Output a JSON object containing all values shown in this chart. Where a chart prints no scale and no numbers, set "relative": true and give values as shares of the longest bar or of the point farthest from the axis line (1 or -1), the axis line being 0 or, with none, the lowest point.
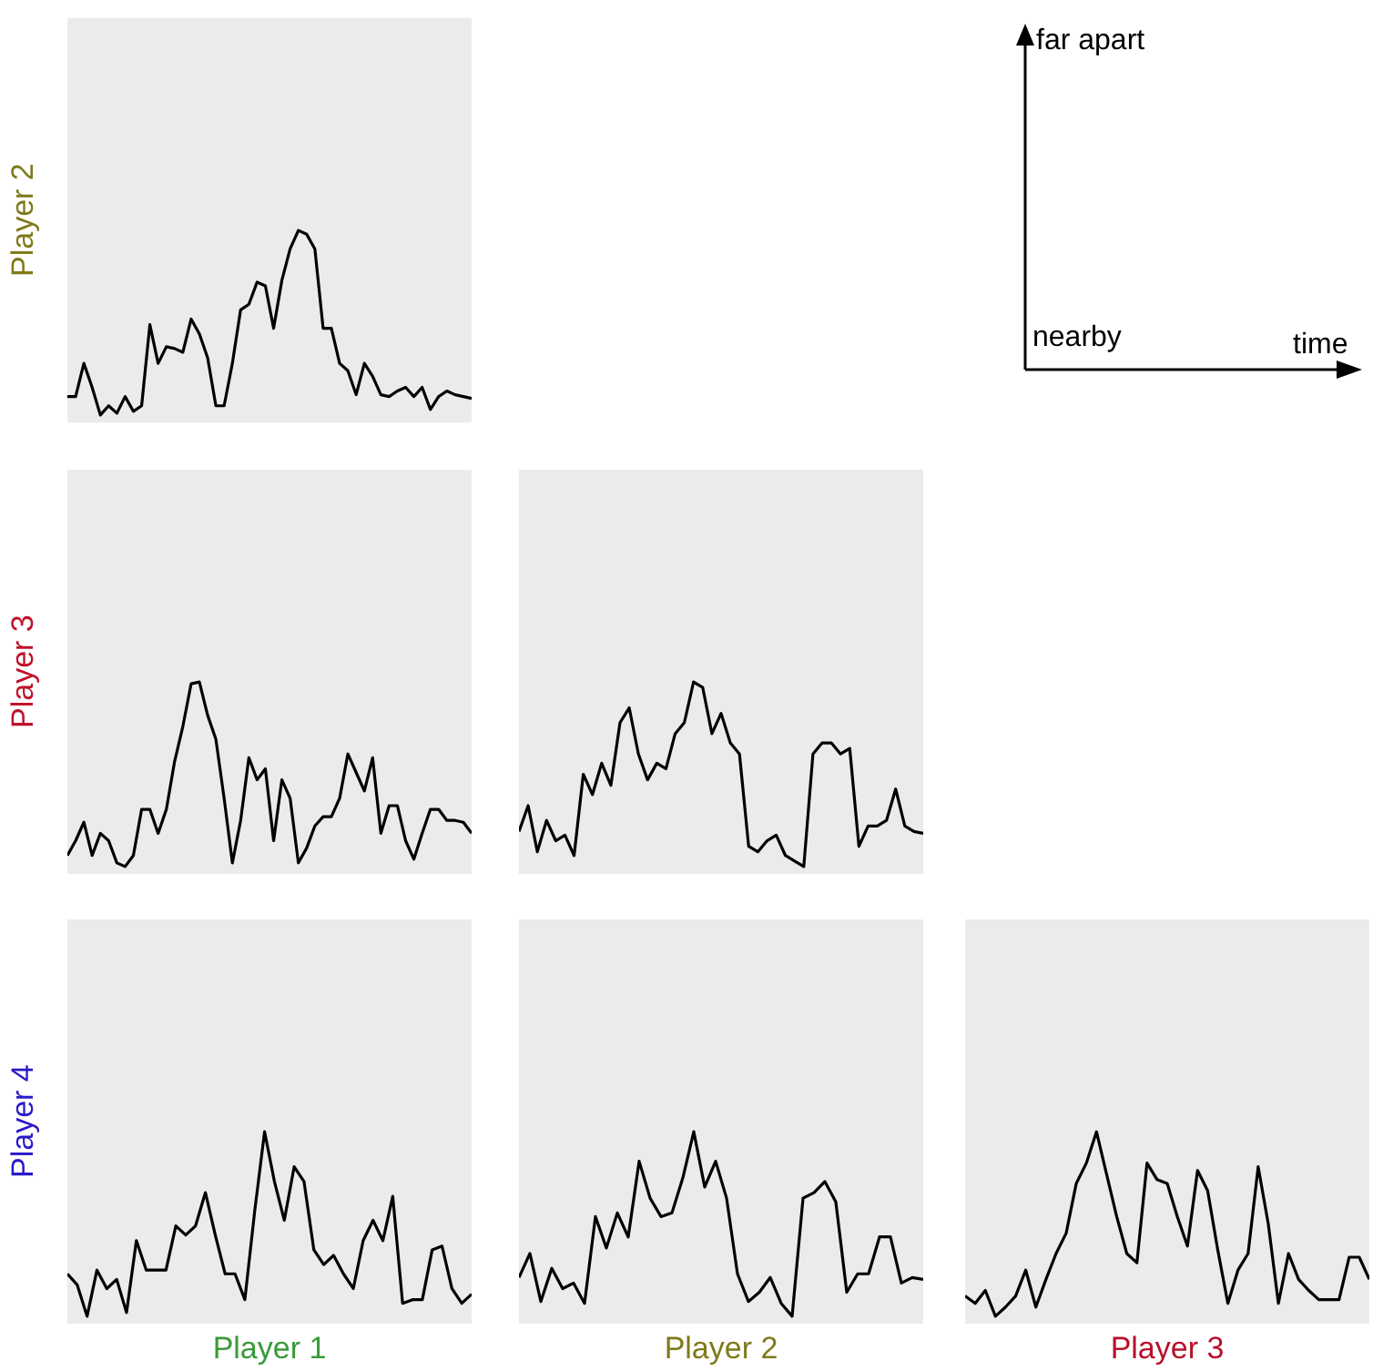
{
  "chart_data": [
    {
      "type": "line",
      "relative": true,
      "ylabel": "Player 2",
      "categories": [
        null,
        null,
        null,
        null,
        null,
        null,
        null,
        null,
        null,
        null,
        null,
        null,
        null,
        null,
        null,
        null,
        null,
        null,
        null,
        null,
        null,
        null,
        null,
        null,
        null,
        null,
        null,
        null,
        null,
        null,
        null,
        null,
        null,
        null,
        null,
        null,
        null,
        null,
        null,
        null,
        null,
        null,
        null,
        null,
        null,
        null,
        null,
        null,
        null,
        null
      ],
      "series": [
        {
          "color": "#000000",
          "values": [
            0.1,
            0.1,
            0.28,
            0.15,
            0,
            0.05,
            0.01,
            0.1,
            0.02,
            0.05,
            0.49,
            0.28,
            0.37,
            0.36,
            0.34,
            0.52,
            0.44,
            0.31,
            0.05,
            0.05,
            0.28,
            0.57,
            0.6,
            0.72,
            0.7,
            0.47,
            0.73,
            0.9,
            1,
            0.98,
            0.9,
            0.47,
            0.47,
            0.28,
            0.24,
            0.11,
            0.28,
            0.21,
            0.11,
            0.1,
            0.13,
            0.15,
            0.1,
            0.15,
            0.03,
            0.1,
            0.13,
            0.11,
            0.1,
            0.09
          ]
        }
      ]
    },
    {
      "type": "line",
      "relative": true,
      "ylabel": "Player 3",
      "categories": [
        null,
        null,
        null,
        null,
        null,
        null,
        null,
        null,
        null,
        null,
        null,
        null,
        null,
        null,
        null,
        null,
        null,
        null,
        null,
        null,
        null,
        null,
        null,
        null,
        null,
        null,
        null,
        null,
        null,
        null,
        null,
        null,
        null,
        null,
        null,
        null,
        null,
        null,
        null,
        null,
        null,
        null,
        null,
        null,
        null,
        null,
        null,
        null,
        null,
        null
      ],
      "series": [
        {
          "color": "#000000",
          "values": [
            0.06,
            0.14,
            0.24,
            0.06,
            0.18,
            0.14,
            0.02,
            0,
            0.06,
            0.31,
            0.31,
            0.18,
            0.31,
            0.57,
            0.76,
            0.99,
            1,
            0.82,
            0.69,
            0.37,
            0.02,
            0.25,
            0.59,
            0.47,
            0.53,
            0.14,
            0.47,
            0.37,
            0.02,
            0.1,
            0.22,
            0.27,
            0.27,
            0.37,
            0.61,
            0.51,
            0.41,
            0.59,
            0.18,
            0.33,
            0.33,
            0.14,
            0.04,
            0.18,
            0.31,
            0.31,
            0.25,
            0.25,
            0.24,
            0.18
          ]
        }
      ]
    },
    {
      "type": "line",
      "relative": true,
      "categories": [
        null,
        null,
        null,
        null,
        null,
        null,
        null,
        null,
        null,
        null,
        null,
        null,
        null,
        null,
        null,
        null,
        null,
        null,
        null,
        null,
        null,
        null,
        null,
        null,
        null,
        null,
        null,
        null,
        null,
        null,
        null,
        null,
        null,
        null,
        null,
        null,
        null,
        null,
        null,
        null,
        null,
        null,
        null,
        null,
        null
      ],
      "series": [
        {
          "color": "#000000",
          "values": [
            0.19,
            0.33,
            0.08,
            0.25,
            0.14,
            0.17,
            0.06,
            0.5,
            0.39,
            0.56,
            0.44,
            0.78,
            0.86,
            0.61,
            0.47,
            0.56,
            0.53,
            0.72,
            0.78,
            1,
            0.97,
            0.72,
            0.83,
            0.67,
            0.61,
            0.11,
            0.08,
            0.14,
            0.17,
            0.06,
            0.03,
            0,
            0.61,
            0.67,
            0.67,
            0.61,
            0.64,
            0.11,
            0.22,
            0.22,
            0.25,
            0.42,
            0.22,
            0.19,
            0.18
          ]
        }
      ]
    },
    {
      "type": "line",
      "relative": true,
      "xlabel": "Player 1",
      "ylabel": "Player 4",
      "categories": [
        null,
        null,
        null,
        null,
        null,
        null,
        null,
        null,
        null,
        null,
        null,
        null,
        null,
        null,
        null,
        null,
        null,
        null,
        null,
        null,
        null,
        null,
        null,
        null,
        null,
        null,
        null,
        null,
        null,
        null,
        null,
        null,
        null,
        null,
        null,
        null,
        null,
        null,
        null,
        null,
        null,
        null
      ],
      "series": [
        {
          "color": "#000000",
          "values": [
            0.23,
            0.17,
            0,
            0.25,
            0.15,
            0.2,
            0.02,
            0.41,
            0.25,
            0.25,
            0.25,
            0.49,
            0.44,
            0.49,
            0.67,
            0.44,
            0.23,
            0.23,
            0.09,
            0.57,
            1,
            0.73,
            0.52,
            0.81,
            0.73,
            0.36,
            0.28,
            0.33,
            0.23,
            0.15,
            0.41,
            0.52,
            0.41,
            0.65,
            0.07,
            0.09,
            0.09,
            0.36,
            0.38,
            0.15,
            0.07,
            0.12
          ]
        }
      ]
    },
    {
      "type": "line",
      "relative": true,
      "xlabel": "Player 2",
      "categories": [
        null,
        null,
        null,
        null,
        null,
        null,
        null,
        null,
        null,
        null,
        null,
        null,
        null,
        null,
        null,
        null,
        null,
        null,
        null,
        null,
        null,
        null,
        null,
        null,
        null,
        null,
        null,
        null,
        null,
        null,
        null,
        null,
        null,
        null,
        null,
        null,
        null,
        null
      ],
      "series": [
        {
          "color": "#000000",
          "values": [
            0.21,
            0.34,
            0.08,
            0.26,
            0.15,
            0.18,
            0.07,
            0.54,
            0.37,
            0.56,
            0.43,
            0.84,
            0.64,
            0.54,
            0.56,
            0.75,
            1,
            0.7,
            0.84,
            0.64,
            0.23,
            0.08,
            0.13,
            0.21,
            0.07,
            0,
            0.64,
            0.67,
            0.73,
            0.62,
            0.13,
            0.23,
            0.23,
            0.43,
            0.43,
            0.18,
            0.21,
            0.2
          ]
        }
      ]
    },
    {
      "type": "line",
      "relative": true,
      "xlabel": "Player 3",
      "categories": [
        null,
        null,
        null,
        null,
        null,
        null,
        null,
        null,
        null,
        null,
        null,
        null,
        null,
        null,
        null,
        null,
        null,
        null,
        null,
        null,
        null,
        null,
        null,
        null,
        null,
        null,
        null,
        null,
        null,
        null,
        null,
        null,
        null,
        null,
        null,
        null,
        null,
        null,
        null,
        null,
        null
      ],
      "series": [
        {
          "color": "#000000",
          "values": [
            0.11,
            0.07,
            0.14,
            0,
            0.05,
            0.11,
            0.25,
            0.05,
            0.2,
            0.34,
            0.45,
            0.72,
            0.83,
            1,
            0.77,
            0.54,
            0.34,
            0.29,
            0.83,
            0.74,
            0.72,
            0.54,
            0.38,
            0.79,
            0.68,
            0.36,
            0.07,
            0.25,
            0.34,
            0.81,
            0.5,
            0.07,
            0.34,
            0.2,
            0.14,
            0.09,
            0.09,
            0.09,
            0.32,
            0.32,
            0.2
          ]
        }
      ]
    },
    {
      "type": "other",
      "annotations": [
        "far apart",
        "nearby",
        "time"
      ]
    }
  ]
}
